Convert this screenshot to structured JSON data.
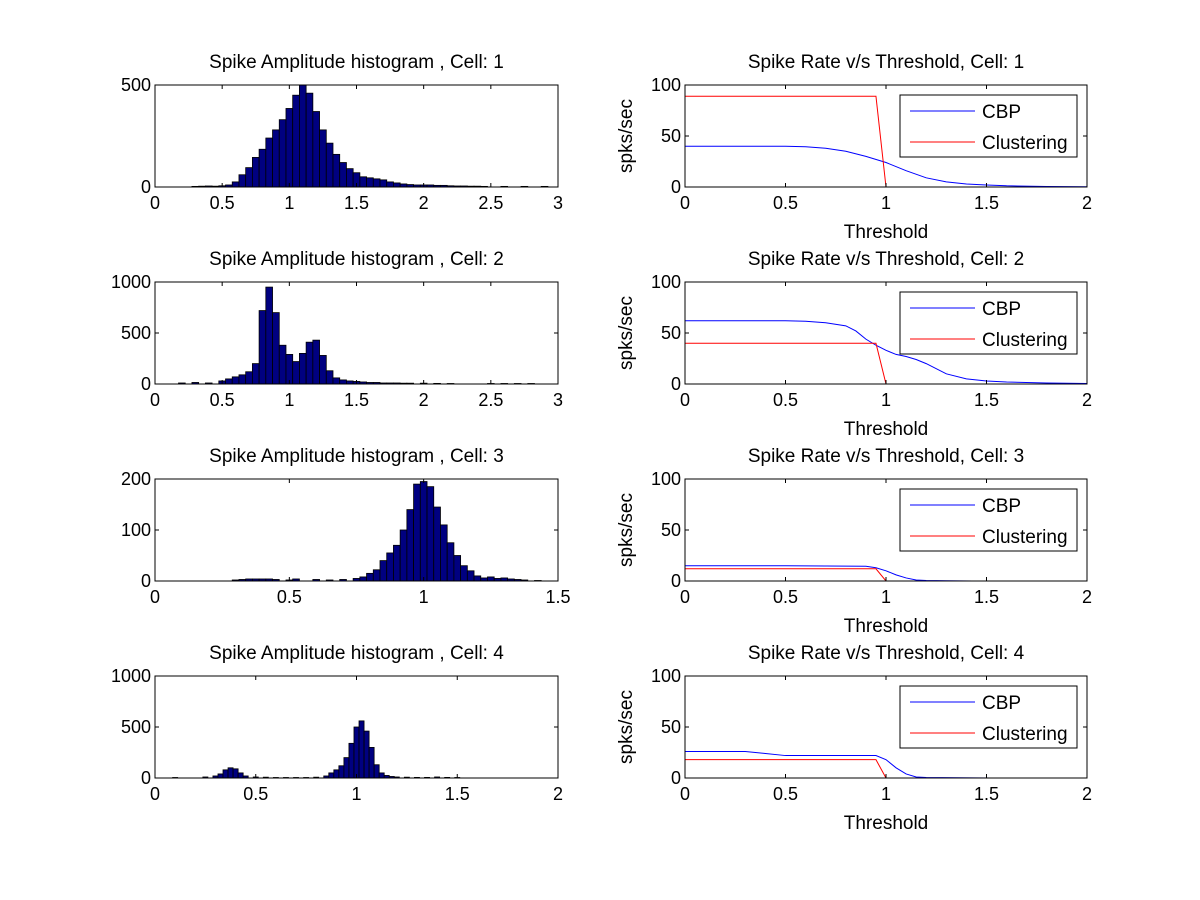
{
  "figure": {
    "background": "#ffffff"
  },
  "colors": {
    "bar_fill": "#000080",
    "bar_edge": "#000000",
    "cbp": "#0000ff",
    "clustering": "#ff0000"
  },
  "chart_data": [
    {
      "id": "hist-cell-1",
      "type": "bar",
      "title": "Spike Amplitude histogram , Cell: 1",
      "xlabel": "",
      "ylabel": "",
      "xlim": [
        0,
        3
      ],
      "ylim": [
        0,
        500
      ],
      "xticks": [
        0,
        0.5,
        1,
        1.5,
        2,
        2.5,
        3
      ],
      "xtick_labels": [
        "0",
        "0.5",
        "1",
        "1.5",
        "2",
        "2.5",
        "3"
      ],
      "yticks": [
        0,
        500
      ],
      "ytick_labels": [
        "0",
        "500"
      ],
      "bin_width": 0.05,
      "x": [
        0.3,
        0.35,
        0.4,
        0.45,
        0.5,
        0.55,
        0.6,
        0.65,
        0.7,
        0.75,
        0.8,
        0.85,
        0.9,
        0.95,
        1.0,
        1.05,
        1.1,
        1.15,
        1.2,
        1.25,
        1.3,
        1.35,
        1.4,
        1.45,
        1.5,
        1.55,
        1.6,
        1.65,
        1.7,
        1.75,
        1.8,
        1.85,
        1.9,
        1.95,
        2.0,
        2.05,
        2.1,
        2.15,
        2.2,
        2.25,
        2.3,
        2.35,
        2.4,
        2.45,
        2.6,
        2.75,
        2.9
      ],
      "values": [
        3,
        4,
        5,
        4,
        6,
        10,
        25,
        60,
        95,
        145,
        185,
        240,
        280,
        330,
        385,
        450,
        500,
        460,
        370,
        280,
        215,
        160,
        120,
        90,
        70,
        50,
        45,
        40,
        35,
        25,
        20,
        15,
        12,
        10,
        10,
        10,
        8,
        8,
        6,
        5,
        5,
        4,
        4,
        3,
        3,
        3,
        3
      ]
    },
    {
      "id": "rate-cell-1",
      "type": "line",
      "title": "Spike Rate v/s Threshold, Cell: 1",
      "xlabel": "Threshold",
      "ylabel": "spks/sec",
      "xlim": [
        0,
        2
      ],
      "ylim": [
        0,
        100
      ],
      "xticks": [
        0,
        0.5,
        1,
        1.5,
        2
      ],
      "xtick_labels": [
        "0",
        "0.5",
        "1",
        "1.5",
        "2"
      ],
      "yticks": [
        0,
        50,
        100
      ],
      "ytick_labels": [
        "0",
        "50",
        "100"
      ],
      "legend": "top-right",
      "series": [
        {
          "name": "CBP",
          "color": "#0000ff",
          "x": [
            0,
            0.5,
            0.6,
            0.7,
            0.8,
            0.9,
            1.0,
            1.1,
            1.2,
            1.3,
            1.4,
            1.5,
            1.6,
            1.8,
            2.0
          ],
          "y": [
            40,
            40,
            39.5,
            38,
            35,
            30,
            24,
            16,
            9,
            5,
            3,
            2,
            1.2,
            0.5,
            0.2
          ]
        },
        {
          "name": "Clustering",
          "color": "#ff0000",
          "x": [
            0,
            0.95,
            1.0
          ],
          "y": [
            89,
            89,
            0
          ]
        }
      ]
    },
    {
      "id": "hist-cell-2",
      "type": "bar",
      "title": "Spike Amplitude histogram , Cell: 2",
      "xlabel": "",
      "ylabel": "",
      "xlim": [
        0,
        3
      ],
      "ylim": [
        0,
        1000
      ],
      "xticks": [
        0,
        0.5,
        1,
        1.5,
        2,
        2.5,
        3
      ],
      "xtick_labels": [
        "0",
        "0.5",
        "1",
        "1.5",
        "2",
        "2.5",
        "3"
      ],
      "yticks": [
        0,
        500,
        1000
      ],
      "ytick_labels": [
        "0",
        "500",
        "1000"
      ],
      "bin_width": 0.05,
      "x": [
        0.2,
        0.3,
        0.4,
        0.5,
        0.55,
        0.6,
        0.65,
        0.7,
        0.75,
        0.8,
        0.85,
        0.9,
        0.95,
        1.0,
        1.05,
        1.1,
        1.15,
        1.2,
        1.25,
        1.3,
        1.35,
        1.4,
        1.45,
        1.5,
        1.55,
        1.6,
        1.65,
        1.7,
        1.75,
        1.8,
        1.85,
        1.9,
        2.0,
        2.1,
        2.2,
        2.5,
        2.6,
        2.7,
        2.8
      ],
      "values": [
        10,
        15,
        10,
        30,
        50,
        70,
        90,
        120,
        200,
        720,
        950,
        700,
        380,
        290,
        220,
        300,
        410,
        430,
        280,
        130,
        60,
        40,
        30,
        25,
        20,
        15,
        15,
        10,
        10,
        10,
        8,
        8,
        8,
        6,
        5,
        5,
        5,
        5,
        5
      ]
    },
    {
      "id": "rate-cell-2",
      "type": "line",
      "title": "Spike Rate v/s Threshold, Cell: 2",
      "xlabel": "Threshold",
      "ylabel": "spks/sec",
      "xlim": [
        0,
        2
      ],
      "ylim": [
        0,
        100
      ],
      "xticks": [
        0,
        0.5,
        1,
        1.5,
        2
      ],
      "xtick_labels": [
        "0",
        "0.5",
        "1",
        "1.5",
        "2"
      ],
      "yticks": [
        0,
        50,
        100
      ],
      "ytick_labels": [
        "0",
        "50",
        "100"
      ],
      "legend": "top-right",
      "series": [
        {
          "name": "CBP",
          "color": "#0000ff",
          "x": [
            0,
            0.5,
            0.6,
            0.7,
            0.8,
            0.85,
            0.9,
            0.95,
            1.0,
            1.05,
            1.1,
            1.15,
            1.2,
            1.3,
            1.4,
            1.5,
            1.6,
            1.8,
            2.0
          ],
          "y": [
            62,
            62,
            61.5,
            60,
            57,
            52,
            44,
            38,
            33,
            29,
            27,
            24,
            20,
            10,
            5,
            3,
            2,
            1,
            0.5
          ]
        },
        {
          "name": "Clustering",
          "color": "#ff0000",
          "x": [
            0,
            0.95,
            1.0
          ],
          "y": [
            40,
            40,
            0
          ]
        }
      ]
    },
    {
      "id": "hist-cell-3",
      "type": "bar",
      "title": "Spike Amplitude histogram , Cell: 3",
      "xlabel": "",
      "ylabel": "",
      "xlim": [
        0,
        1.5
      ],
      "ylim": [
        0,
        200
      ],
      "xticks": [
        0,
        0.5,
        1,
        1.5
      ],
      "xtick_labels": [
        "0",
        "0.5",
        "1",
        "1.5"
      ],
      "yticks": [
        0,
        100,
        200
      ],
      "ytick_labels": [
        "0",
        "100",
        "200"
      ],
      "bin_width": 0.025,
      "x": [
        0.3,
        0.325,
        0.35,
        0.375,
        0.4,
        0.425,
        0.45,
        0.5,
        0.525,
        0.6,
        0.65,
        0.7,
        0.75,
        0.775,
        0.8,
        0.825,
        0.85,
        0.875,
        0.9,
        0.925,
        0.95,
        0.975,
        1.0,
        1.025,
        1.05,
        1.075,
        1.1,
        1.125,
        1.15,
        1.175,
        1.2,
        1.225,
        1.25,
        1.275,
        1.3,
        1.325,
        1.35,
        1.375,
        1.425
      ],
      "values": [
        2,
        3,
        4,
        4,
        4,
        4,
        3,
        2,
        4,
        3,
        2,
        3,
        5,
        8,
        15,
        22,
        40,
        55,
        70,
        100,
        140,
        190,
        195,
        185,
        145,
        110,
        75,
        50,
        30,
        20,
        10,
        6,
        8,
        5,
        6,
        4,
        3,
        2,
        1
      ]
    },
    {
      "id": "rate-cell-3",
      "type": "line",
      "title": "Spike Rate v/s Threshold, Cell: 3",
      "xlabel": "Threshold",
      "ylabel": "spks/sec",
      "xlim": [
        0,
        2
      ],
      "ylim": [
        0,
        100
      ],
      "xticks": [
        0,
        0.5,
        1,
        1.5,
        2
      ],
      "xtick_labels": [
        "0",
        "0.5",
        "1",
        "1.5",
        "2"
      ],
      "yticks": [
        0,
        50,
        100
      ],
      "ytick_labels": [
        "0",
        "50",
        "100"
      ],
      "legend": "top-right",
      "series": [
        {
          "name": "CBP",
          "color": "#0000ff",
          "x": [
            0,
            0.5,
            0.9,
            0.95,
            1.0,
            1.05,
            1.1,
            1.15,
            1.2,
            1.3,
            1.43
          ],
          "y": [
            15,
            15,
            14.5,
            13,
            10,
            6,
            3,
            1,
            0.5,
            0.2,
            0
          ]
        },
        {
          "name": "Clustering",
          "color": "#ff0000",
          "x": [
            0,
            0.95,
            1.0
          ],
          "y": [
            12,
            12,
            0
          ]
        }
      ]
    },
    {
      "id": "hist-cell-4",
      "type": "bar",
      "title": "Spike Amplitude histogram , Cell: 4",
      "xlabel": "",
      "ylabel": "",
      "xlim": [
        0,
        2
      ],
      "ylim": [
        0,
        1000
      ],
      "xticks": [
        0,
        0.5,
        1,
        1.5,
        2
      ],
      "xtick_labels": [
        "0",
        "0.5",
        "1",
        "1.5",
        "2"
      ],
      "yticks": [
        0,
        500,
        1000
      ],
      "ytick_labels": [
        "0",
        "500",
        "1000"
      ],
      "bin_width": 0.025,
      "x": [
        0.1,
        0.25,
        0.3,
        0.325,
        0.35,
        0.375,
        0.4,
        0.425,
        0.45,
        0.5,
        0.55,
        0.6,
        0.65,
        0.7,
        0.75,
        0.8,
        0.85,
        0.875,
        0.9,
        0.925,
        0.95,
        0.975,
        1.0,
        1.025,
        1.05,
        1.075,
        1.1,
        1.125,
        1.15,
        1.175,
        1.2,
        1.25,
        1.3,
        1.35,
        1.4,
        1.45,
        1.5
      ],
      "values": [
        5,
        10,
        20,
        40,
        80,
        100,
        90,
        50,
        20,
        10,
        8,
        5,
        5,
        5,
        5,
        8,
        20,
        50,
        80,
        120,
        200,
        340,
        500,
        560,
        460,
        300,
        130,
        50,
        25,
        15,
        10,
        8,
        6,
        6,
        10,
        6,
        5
      ]
    },
    {
      "id": "rate-cell-4",
      "type": "line",
      "title": "Spike Rate v/s Threshold, Cell: 4",
      "xlabel": "Threshold",
      "ylabel": "spks/sec",
      "xlim": [
        0,
        2
      ],
      "ylim": [
        0,
        100
      ],
      "xticks": [
        0,
        0.5,
        1,
        1.5,
        2
      ],
      "xtick_labels": [
        "0",
        "0.5",
        "1",
        "1.5",
        "2"
      ],
      "yticks": [
        0,
        50,
        100
      ],
      "ytick_labels": [
        "0",
        "50",
        "100"
      ],
      "legend": "top-right",
      "series": [
        {
          "name": "CBP",
          "color": "#0000ff",
          "x": [
            0,
            0.3,
            0.4,
            0.5,
            0.95,
            1.0,
            1.05,
            1.1,
            1.15,
            1.2,
            1.52
          ],
          "y": [
            26,
            26,
            24,
            22,
            22,
            18,
            10,
            4,
            1,
            0.5,
            0
          ]
        },
        {
          "name": "Clustering",
          "color": "#ff0000",
          "x": [
            0,
            0.95,
            1.0
          ],
          "y": [
            18,
            18,
            0
          ]
        }
      ]
    }
  ]
}
